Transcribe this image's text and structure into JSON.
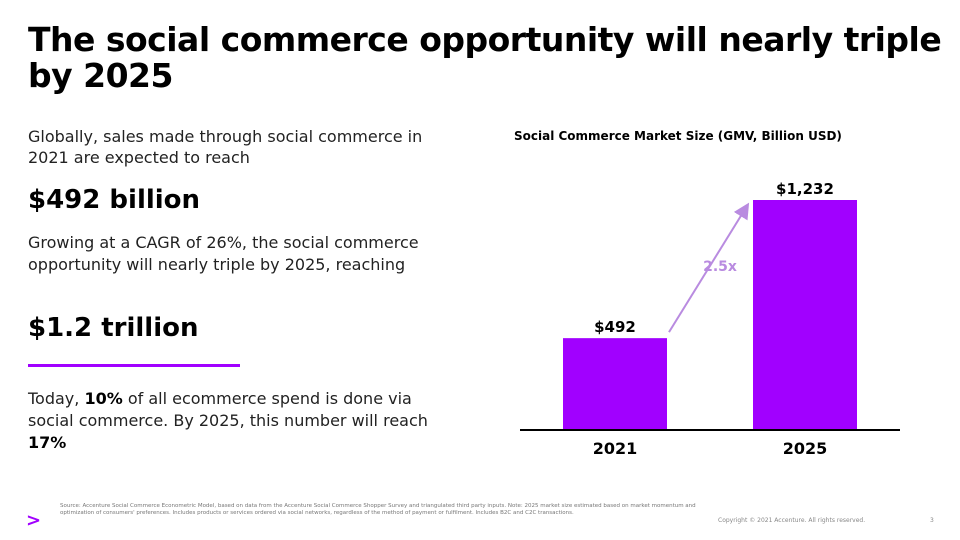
{
  "slide": {
    "title": "The social commerce opportunity will nearly triple by 2025",
    "intro": "Globally, sales made through social commerce in 2021 are expected to reach",
    "stat_2021": "$492 billion",
    "growth": "Growing at a CAGR of 26%, the social commerce opportunity will nearly triple by 2025, reaching",
    "stat_2025": "$1.2 trillion",
    "today": {
      "t1": "Today, ",
      "b1": "10%",
      "t2": " of all ecommerce spend is done via social commerce. By 2025, this number will reach ",
      "b2": "17%"
    }
  },
  "footer": {
    "logo": ">",
    "source": "Source: Accenture Social Commerce Econometric Model, based on data from the Accenture Social Commerce Shopper Survey and triangulated third party inputs. Note: 2025 market size estimated based on market momentum and optimization of consumers' preferences. Includes products or services ordered via social networks, regardless of the method of payment or fulfilment. Includes B2C and C2C transactions.",
    "copyright": "Copyright © 2021 Accenture. All rights reserved.",
    "page": "3"
  },
  "colors": {
    "bar": "#a100ff",
    "arrow": "#b98be0",
    "annotation": "#b98be0",
    "divider": "#a100ff"
  },
  "chart_data": {
    "type": "bar",
    "title": "Social Commerce Market Size (GMV, Billion USD)",
    "categories": [
      "2021",
      "2025"
    ],
    "values": [
      492,
      1232
    ],
    "data_labels": [
      "$492",
      "$1,232"
    ],
    "annotation": "2.5x",
    "xlabel": "",
    "ylabel": "",
    "ylim": [
      0,
      1232
    ],
    "grid": false,
    "legend": "none"
  }
}
